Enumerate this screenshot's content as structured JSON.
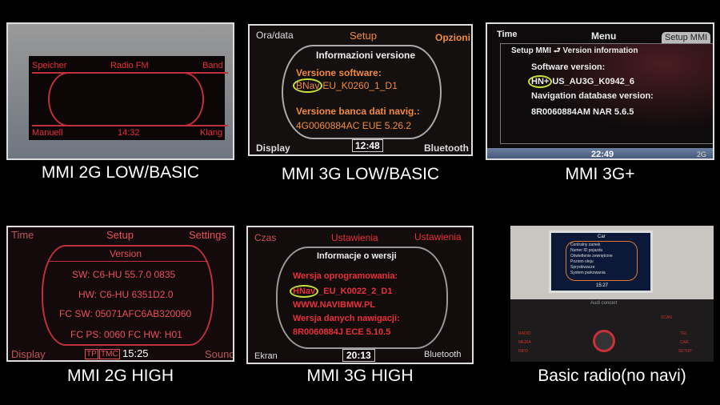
{
  "panels": [
    {
      "caption": "MMI 2G LOW/BASIC",
      "top_left": "Speicher",
      "top_center": "Radio FM",
      "top_right": "Band",
      "bottom_left": "Manuell",
      "bottom_center": "14:32",
      "bottom_right": "Klang"
    },
    {
      "caption": "MMI 3G LOW/BASIC",
      "top_left": "Ora/data",
      "top_center": "Setup",
      "top_right": "Opzioni",
      "title": "Informazioni versione",
      "label1": "Versione software:",
      "prefix": "BNav",
      "value1": "EU_K0260_1_D1",
      "label2": "Versione banca dati navig.:",
      "value2": "4G0060884AC EUE 5.26.2",
      "bottom_left": "Display",
      "clock": "12:48",
      "bottom_right": "Bluetooth"
    },
    {
      "caption": "MMI 3G+",
      "top_left": "Time",
      "top_center": "Menu",
      "tab": "Setup MMI",
      "breadcrumb": "Setup MMI ⮐ Version information",
      "label1": "Software version:",
      "prefix": "HN+",
      "value1": "US_AU3G_K0942_6",
      "label2": "Navigation database version:",
      "value2": "8R0060884AM NAR 5.6.5",
      "clock": "22:49",
      "status": "2G"
    },
    {
      "caption": "MMI 2G HIGH",
      "top_left": "Time",
      "top_center": "Setup",
      "top_right": "Settings",
      "title": "Version",
      "lines": [
        "SW: C6-HU 55.7.0 0835",
        "HW: C6-HU 6351D2.0",
        "FC SW: 05071AFC6AB320060",
        "FC PS: 0060 FC HW: H01"
      ],
      "bottom_left": "Display",
      "tp": "TP",
      "tmc": "TMC",
      "clock": "15:25",
      "bottom_right": "Sound"
    },
    {
      "caption": "MMI 3G HIGH",
      "top_left": "Czas",
      "top_center": "Ustawienia",
      "top_right": "Ustawienia",
      "title": "Informacje o wersji",
      "label1": "Wersja oprogramowania:",
      "prefix": "HNav",
      "value1": "_EU_K0022_2_D1",
      "line2": "WWW.NAVIBMW.PL",
      "label2": "Wersja danych nawigacji:",
      "value2": "8R0060884J  ECE 5.10.5",
      "bottom_left": "Ekran",
      "clock": "20:13",
      "bottom_right": "Bluetooth"
    },
    {
      "caption": "Basic radio(no navi)",
      "screen_title": "Car",
      "menu": [
        "Centralny zamek",
        "Numer ID pojazdu",
        "Oświetlenie zewnętrzne",
        "Poziom oleju",
        "Spryskiwacze",
        "System parkowania"
      ],
      "clock": "15:27",
      "brand": "Audi concert",
      "buttons_left": [
        "RADIO",
        "MEDIA",
        "INFO"
      ],
      "buttons_right": [
        "TEL",
        "CAR",
        "SETUP"
      ],
      "scan": "SCAN"
    }
  ],
  "colors": {
    "red": "#e8303a",
    "orange": "#f08a3a",
    "highlight": "#c6e03a"
  }
}
